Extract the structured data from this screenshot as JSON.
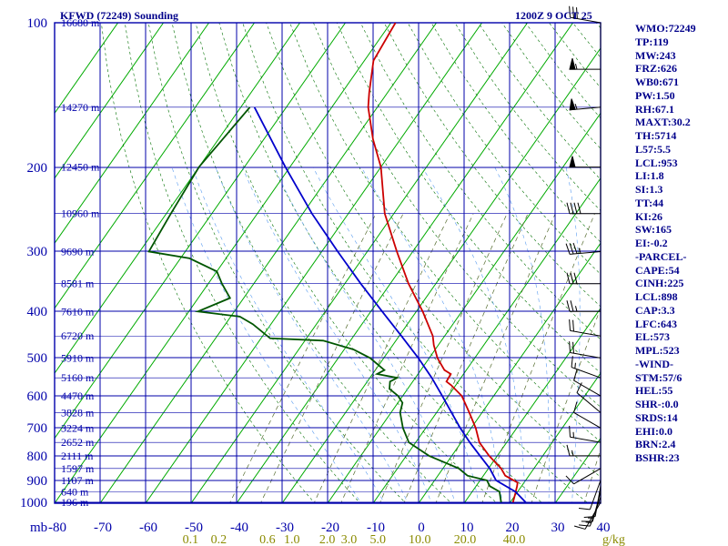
{
  "title": "KFWD (72249) Sounding",
  "datetime": "1200Z  9 OCT 25",
  "pressure_unit": "mb",
  "mixing_ratio_unit": "g/kg",
  "indices": [
    "WMO:72249",
    "TP:119",
    "MW:243",
    "FRZ:626",
    "WB0:671",
    "PW:1.50",
    "RH:67.1",
    "MAXT:30.2",
    "TH:5714",
    "L57:5.5",
    "LCL:953",
    "LI:1.8",
    "SI:1.3",
    "TT:44",
    "KI:26",
    "SW:165",
    "EI:-0.2",
    "-PARCEL-",
    "CAPE:54",
    "CINH:225",
    "LCL:898",
    "CAP:3.3",
    "LFC:643",
    "EL:573",
    "MPL:523",
    "-WIND-",
    "STM:57/6",
    "HEL:55",
    "SHR-:0.0",
    "SRDS:14",
    "EHI:0.0",
    "BRN:2.4",
    "BSHR:23"
  ],
  "colors": {
    "grid": "#0000aa",
    "isotherm": "#00aa00",
    "dry_adiabat": "#007000",
    "moist_adiabat": "#5a9cf0",
    "mixing_ratio": "#556b2f",
    "temperature": "#cc0000",
    "dewpoint": "#005500",
    "parcel": "#0000cc",
    "label_yellow": "#8b8b00",
    "wind_barb": "#000000"
  },
  "chart_data": {
    "type": "skew-t",
    "pressure_levels": [
      100,
      200,
      300,
      400,
      500,
      600,
      700,
      800,
      900,
      1000
    ],
    "pressure_range_mb": [
      100,
      1050
    ],
    "temperature_ticks_c": [
      -80,
      -70,
      -60,
      -50,
      -40,
      -30,
      -20,
      -10,
      0,
      10,
      20,
      30,
      40
    ],
    "mixing_ratio_labels": [
      "0.1",
      "0.2",
      "0.6",
      "1.0",
      "2.0",
      "3.0",
      "5.0",
      "10.0",
      "20.0",
      "40.0"
    ],
    "mixing_ratio_values": [
      0.1,
      0.2,
      0.6,
      1.0,
      2.0,
      3.0,
      5.0,
      10.0,
      20.0,
      40.0
    ],
    "height_labels": [
      {
        "p": 100,
        "text": "16680 m"
      },
      {
        "p": 150,
        "text": "14270 m"
      },
      {
        "p": 200,
        "text": "12450 m"
      },
      {
        "p": 250,
        "text": "10960 m"
      },
      {
        "p": 300,
        "text": "9690 m"
      },
      {
        "p": 350,
        "text": "8581 m"
      },
      {
        "p": 400,
        "text": "7610 m"
      },
      {
        "p": 450,
        "text": "6720 m"
      },
      {
        "p": 500,
        "text": "5910 m"
      },
      {
        "p": 550,
        "text": "5160 m"
      },
      {
        "p": 600,
        "text": "4470 m"
      },
      {
        "p": 650,
        "text": "3828 m"
      },
      {
        "p": 700,
        "text": "3224 m"
      },
      {
        "p": 750,
        "text": "2652 m"
      },
      {
        "p": 800,
        "text": "2111 m"
      },
      {
        "p": 850,
        "text": "1597 m"
      },
      {
        "p": 900,
        "text": "1107 m"
      },
      {
        "p": 950,
        "text": "640 m"
      },
      {
        "p": 1000,
        "text": "196 m"
      }
    ],
    "temperature": [
      [
        1000,
        20.6
      ],
      [
        960,
        19.8
      ],
      [
        925,
        19
      ],
      [
        910,
        18.6
      ],
      [
        880,
        14.8
      ],
      [
        850,
        12.8
      ],
      [
        800,
        8.2
      ],
      [
        750,
        4
      ],
      [
        700,
        1
      ],
      [
        650,
        -2.8
      ],
      [
        600,
        -7
      ],
      [
        570,
        -11
      ],
      [
        560,
        -12.6
      ],
      [
        540,
        -12.8
      ],
      [
        530,
        -14.8
      ],
      [
        500,
        -18.2
      ],
      [
        470,
        -21
      ],
      [
        450,
        -22.6
      ],
      [
        400,
        -28.6
      ],
      [
        350,
        -36
      ],
      [
        300,
        -43.5
      ],
      [
        250,
        -52
      ],
      [
        200,
        -60
      ],
      [
        175,
        -66
      ],
      [
        150,
        -72
      ],
      [
        140,
        -74
      ],
      [
        120,
        -78
      ],
      [
        100,
        -79
      ]
    ],
    "dewpoint": [
      [
        1000,
        18
      ],
      [
        950,
        16
      ],
      [
        925,
        13
      ],
      [
        900,
        11.5
      ],
      [
        880,
        6.5
      ],
      [
        850,
        3.5
      ],
      [
        800,
        -5
      ],
      [
        750,
        -11.5
      ],
      [
        700,
        -15
      ],
      [
        650,
        -18
      ],
      [
        620,
        -19
      ],
      [
        600,
        -21
      ],
      [
        580,
        -24
      ],
      [
        560,
        -25
      ],
      [
        550,
        -24
      ],
      [
        540,
        -29
      ],
      [
        530,
        -28
      ],
      [
        500,
        -33
      ],
      [
        480,
        -38
      ],
      [
        460,
        -46
      ],
      [
        455,
        -58
      ],
      [
        425,
        -64
      ],
      [
        410,
        -68
      ],
      [
        400,
        -78
      ],
      [
        375,
        -73
      ],
      [
        350,
        -77
      ],
      [
        330,
        -80
      ],
      [
        310,
        -88
      ],
      [
        300,
        -98
      ],
      [
        250,
        -99
      ],
      [
        200,
        -100
      ],
      [
        150,
        -98
      ]
    ],
    "parcel": [
      [
        1000,
        23.4
      ],
      [
        950,
        19.5
      ],
      [
        900,
        13.5
      ],
      [
        850,
        10.3
      ],
      [
        800,
        6.2
      ],
      [
        750,
        1.9
      ],
      [
        700,
        -2.4
      ],
      [
        650,
        -6.7
      ],
      [
        600,
        -11.3
      ],
      [
        550,
        -16.4
      ],
      [
        500,
        -22.4
      ],
      [
        450,
        -29.5
      ],
      [
        400,
        -37.5
      ],
      [
        350,
        -46.5
      ],
      [
        300,
        -56.5
      ],
      [
        250,
        -68
      ],
      [
        200,
        -81
      ],
      [
        150,
        -97
      ]
    ],
    "wind_barbs": [
      {
        "p": 1000,
        "dir": 210,
        "spd": 10
      },
      {
        "p": 975,
        "dir": 200,
        "spd": 15
      },
      {
        "p": 950,
        "dir": 195,
        "spd": 15
      },
      {
        "p": 925,
        "dir": 190,
        "spd": 10
      },
      {
        "p": 900,
        "dir": 200,
        "spd": 10
      },
      {
        "p": 850,
        "dir": 240,
        "spd": 10
      },
      {
        "p": 800,
        "dir": 270,
        "spd": 15
      },
      {
        "p": 750,
        "dir": 280,
        "spd": 15
      },
      {
        "p": 700,
        "dir": 300,
        "spd": 10
      },
      {
        "p": 650,
        "dir": 310,
        "spd": 10
      },
      {
        "p": 600,
        "dir": 300,
        "spd": 10
      },
      {
        "p": 550,
        "dir": 290,
        "spd": 15
      },
      {
        "p": 500,
        "dir": 280,
        "spd": 20
      },
      {
        "p": 450,
        "dir": 280,
        "spd": 20
      },
      {
        "p": 400,
        "dir": 270,
        "spd": 25
      },
      {
        "p": 350,
        "dir": 270,
        "spd": 30
      },
      {
        "p": 300,
        "dir": 265,
        "spd": 35
      },
      {
        "p": 250,
        "dir": 270,
        "spd": 40
      },
      {
        "p": 200,
        "dir": 270,
        "spd": 50
      },
      {
        "p": 150,
        "dir": 265,
        "spd": 55
      },
      {
        "p": 125,
        "dir": 270,
        "spd": 55
      },
      {
        "p": 100,
        "dir": 280,
        "spd": 30
      }
    ]
  }
}
